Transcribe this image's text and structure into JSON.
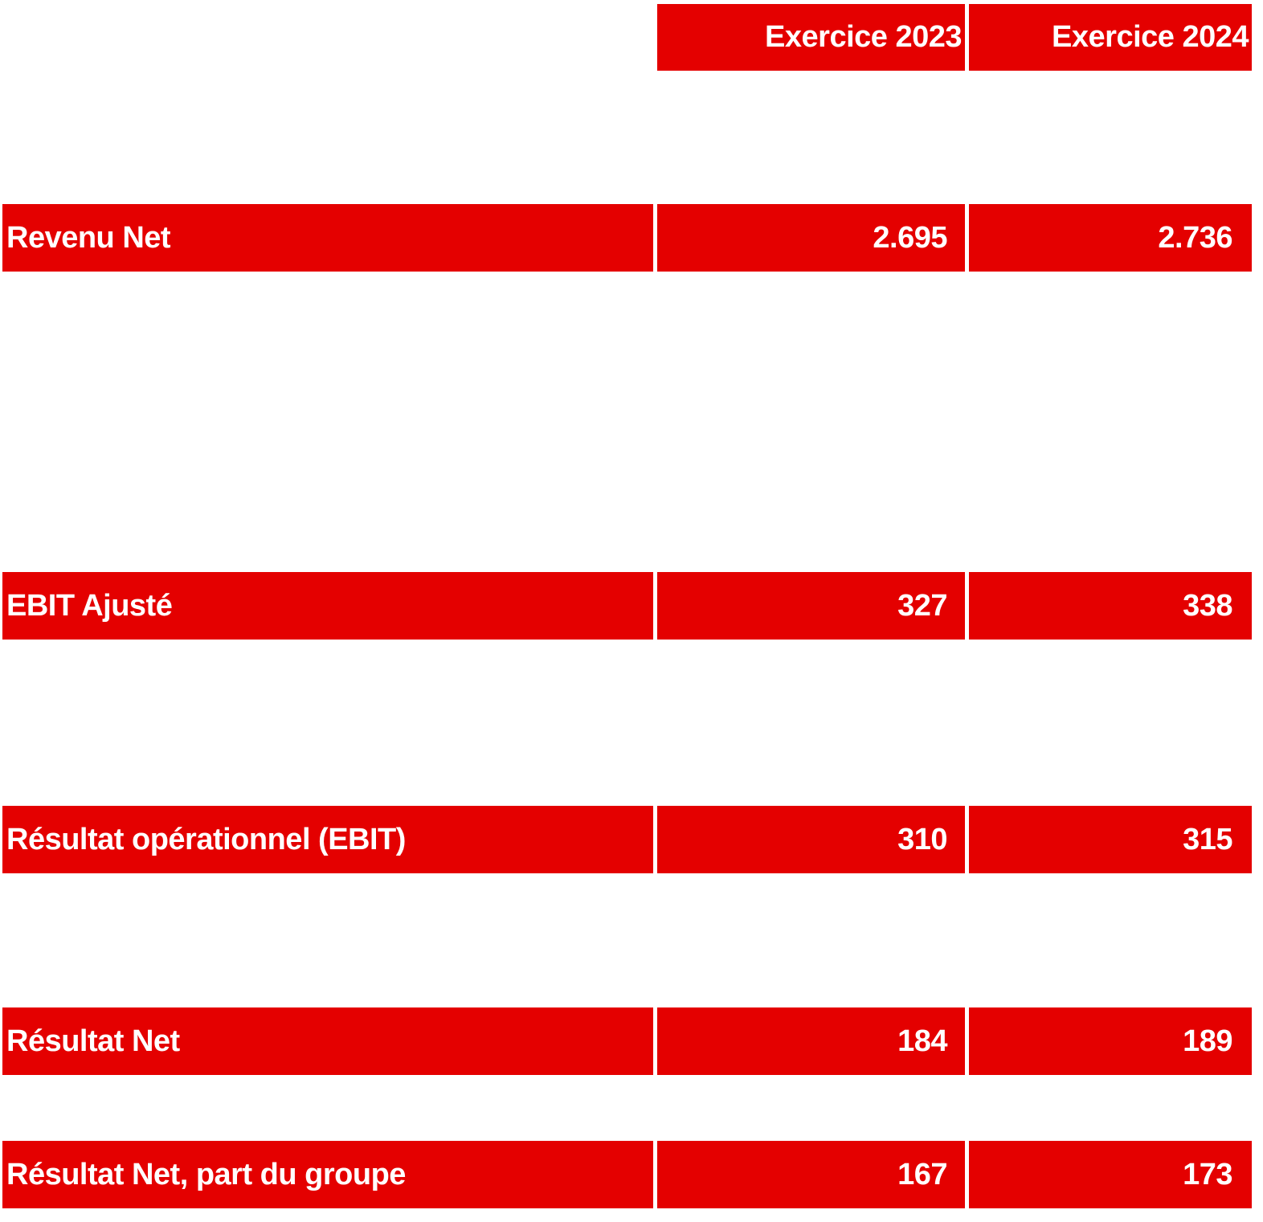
{
  "header": {
    "col1": "Exercice 2023",
    "col2": "Exercice 2024"
  },
  "rows": [
    {
      "label": "Revenu Net",
      "v2023": "2.695",
      "v2024": "2.736"
    },
    {
      "label": "EBIT Ajusté",
      "v2023": "327",
      "v2024": "338"
    },
    {
      "label": "Résultat opérationnel (EBIT)",
      "v2023": "310",
      "v2024": "315"
    },
    {
      "label": "Résultat Net",
      "v2023": "184",
      "v2024": "189"
    },
    {
      "label": "Résultat Net, part du groupe",
      "v2023": "167",
      "v2024": "173"
    }
  ],
  "colors": {
    "accent": "#e40000"
  }
}
